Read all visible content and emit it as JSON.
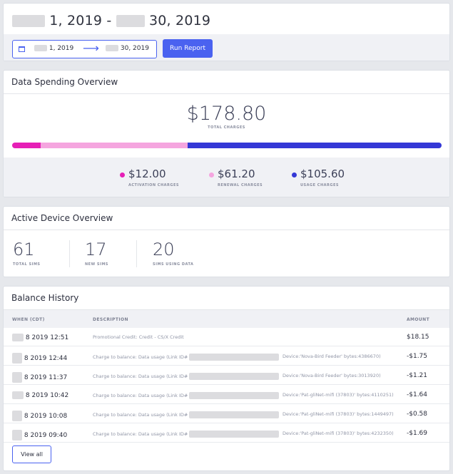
{
  "date_range": {
    "title_start": "1, 2019",
    "title_sep": "-",
    "title_end": "30, 2019",
    "input_start": "1, 2019",
    "input_end": "30, 2019",
    "arrow": "⟶",
    "run_label": "Run Report",
    "icon": "calendar-icon"
  },
  "spending": {
    "title": "Data Spending Overview",
    "total": "$178.80",
    "total_label": "TOTAL CHARGES",
    "segments": [
      {
        "name": "activation",
        "value": 12.0,
        "color": "#e61fb6"
      },
      {
        "name": "renewal",
        "value": 61.2,
        "color": "#f5a5df"
      },
      {
        "name": "usage",
        "value": 105.6,
        "color": "#3438d6"
      }
    ],
    "legend": [
      {
        "value": "$12.00",
        "label": "ACTIVATION CHARGES",
        "color": "#e61fb6"
      },
      {
        "value": "$61.20",
        "label": "RENEWAL CHARGES",
        "color": "#f5a5df"
      },
      {
        "value": "$105.60",
        "label": "USAGE CHARGES",
        "color": "#3438d6"
      }
    ]
  },
  "devices": {
    "title": "Active Device Overview",
    "stats": [
      {
        "value": "61",
        "label": "TOTAL SIMS"
      },
      {
        "value": "17",
        "label": "NEW SIMS"
      },
      {
        "value": "20",
        "label": "SIMS USING DATA"
      }
    ]
  },
  "balance": {
    "title": "Balance History",
    "columns": {
      "when": "WHEN (CDT)",
      "description": "DESCRIPTION",
      "amount": "AMOUNT"
    },
    "rows": [
      {
        "when": "8 2019 12:51",
        "desc": "Promotional Credit: Credit - CS/X Credit",
        "desc_tail": "",
        "amount": "$18.15"
      },
      {
        "when": "8 2019 12:44",
        "desc": "Charge to balance: Data usage (Link ID#",
        "desc_tail": "Device:'Nova-Bird Feeder' bytes:4386670)",
        "amount": "-$1.75"
      },
      {
        "when": "8 2019 11:37",
        "desc": "Charge to balance: Data usage (Link ID#",
        "desc_tail": "Device:'Nova-Bird Feeder' bytes:3013920)",
        "amount": "-$1.21"
      },
      {
        "when": "8 2019 10:42",
        "desc": "Charge to balance: Data usage (Link ID#",
        "desc_tail": "Device:'Pat-gliNet-mifi (37803)' bytes:4110251)",
        "amount": "-$1.64"
      },
      {
        "when": "8 2019 10:08",
        "desc": "Charge to balance: Data usage (Link ID#",
        "desc_tail": "Device:'Pat-gliNet-mifi (37803)' bytes:1449497)",
        "amount": "-$0.58"
      },
      {
        "when": "8 2019 09:40",
        "desc": "Charge to balance: Data usage (Link ID#",
        "desc_tail": "Device:'Pat-gliNet-mifi (37803)' bytes:4232350)",
        "amount": "-$1.69"
      }
    ],
    "view_all": "View all"
  }
}
